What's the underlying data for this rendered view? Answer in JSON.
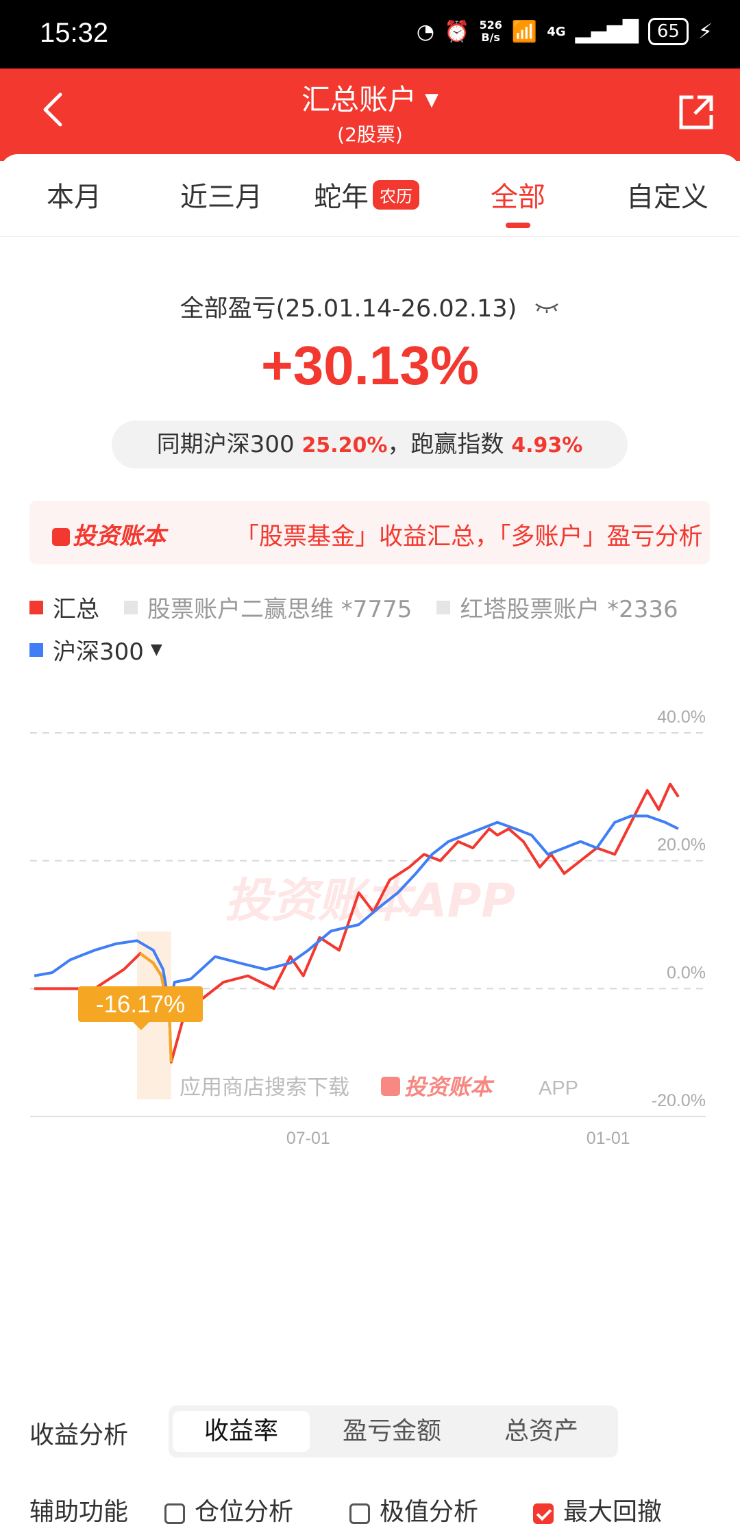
{
  "status": {
    "time": "15:32",
    "net_speed_top": "526",
    "net_speed_bottom": "B/s",
    "signal": "4G",
    "battery": "65"
  },
  "header": {
    "title": "汇总账户",
    "subtitle": "(2股票)"
  },
  "tabs": [
    {
      "label": "本月"
    },
    {
      "label": "近三月"
    },
    {
      "label": "蛇年",
      "badge": "农历"
    },
    {
      "label": "全部",
      "active": true
    },
    {
      "label": "自定义"
    }
  ],
  "summary": {
    "label": "全部盈亏(25.01.14-26.02.13)",
    "value": "+30.13%",
    "compare_prefix": "同期沪深300",
    "compare_index_value": "25.20%",
    "compare_mid": "，跑赢指数",
    "compare_excess": "4.93%"
  },
  "promo": {
    "logo": "投资账本",
    "text": "「股票基金」收益汇总，「多账户」盈亏分析"
  },
  "legend": {
    "summary": "汇总",
    "account1": "股票账户二赢思维 *7775",
    "account2": "红塔股票账户 *2336",
    "index": "沪深300",
    "index_caret": "▼"
  },
  "colors": {
    "brand": "#f2382f",
    "index": "#3f7ef5",
    "drawdown": "#f5a623"
  },
  "chart_data": {
    "type": "line",
    "x_ticks": [
      "07-01",
      "01-01"
    ],
    "y_ticks": [
      "40.0%",
      "20.0%",
      "0.0%",
      "-20.0%"
    ],
    "ylim": [
      -20,
      40
    ],
    "xlim": [
      "2025-01-14",
      "2026-02-13"
    ],
    "grid": true,
    "watermark": "投资账本APP",
    "footer_text": "应用商店搜索下载",
    "footer_logo": "投资账本",
    "footer_suffix": "APP",
    "max_drawdown_label": "-16.17%",
    "max_drawdown_period": [
      "2025-03-18",
      "2025-04-08"
    ],
    "series": [
      {
        "name": "汇总",
        "color": "#f2382f",
        "x": [
          "2025-01-14",
          "2025-02-01",
          "2025-02-20",
          "2025-03-10",
          "2025-03-20",
          "2025-03-28",
          "2025-04-02",
          "2025-04-07",
          "2025-04-08",
          "2025-04-15",
          "2025-04-25",
          "2025-05-10",
          "2025-05-25",
          "2025-06-10",
          "2025-06-20",
          "2025-06-28",
          "2025-07-08",
          "2025-07-20",
          "2025-08-01",
          "2025-08-10",
          "2025-08-20",
          "2025-09-01",
          "2025-09-10",
          "2025-09-20",
          "2025-10-01",
          "2025-10-10",
          "2025-10-20",
          "2025-10-25",
          "2025-11-01",
          "2025-11-10",
          "2025-11-20",
          "2025-11-27",
          "2025-12-05",
          "2025-12-15",
          "2025-12-25",
          "2026-01-05",
          "2026-01-15",
          "2026-01-25",
          "2026-02-01",
          "2026-02-08",
          "2026-02-13"
        ],
        "values": [
          0,
          0,
          0,
          3,
          5.5,
          4,
          2,
          -5,
          -11.5,
          -5,
          -2,
          1,
          2,
          0,
          5,
          2,
          8,
          6,
          15,
          12,
          17,
          19,
          21,
          20,
          23,
          22,
          25,
          24,
          25,
          23,
          19,
          21,
          18,
          20,
          22,
          21,
          26,
          31,
          28,
          32,
          30
        ]
      },
      {
        "name": "沪深300",
        "color": "#3f7ef5",
        "x": [
          "2025-01-14",
          "2025-01-25",
          "2025-02-05",
          "2025-02-20",
          "2025-03-05",
          "2025-03-18",
          "2025-03-28",
          "2025-04-03",
          "2025-04-07",
          "2025-04-10",
          "2025-04-20",
          "2025-05-05",
          "2025-05-20",
          "2025-06-05",
          "2025-06-20",
          "2025-07-01",
          "2025-07-15",
          "2025-08-01",
          "2025-08-15",
          "2025-08-25",
          "2025-09-05",
          "2025-09-15",
          "2025-09-25",
          "2025-10-05",
          "2025-10-15",
          "2025-10-25",
          "2025-11-05",
          "2025-11-15",
          "2025-11-25",
          "2025-12-05",
          "2025-12-15",
          "2025-12-25",
          "2026-01-05",
          "2026-01-15",
          "2026-01-25",
          "2026-02-05",
          "2026-02-13"
        ],
        "values": [
          2,
          2.5,
          4.5,
          6,
          7,
          7.5,
          6,
          3,
          -3,
          1,
          1.5,
          5,
          4,
          3,
          4,
          6,
          9,
          10,
          13,
          15,
          18,
          21,
          23,
          24,
          25,
          26,
          25,
          24,
          21,
          22,
          23,
          22,
          26,
          27,
          27,
          26,
          25
        ]
      }
    ]
  },
  "analysis": {
    "label": "收益分析",
    "options": [
      "收益率",
      "盈亏金额",
      "总资产"
    ],
    "active_index": 0
  },
  "tools": {
    "label": "辅助功能",
    "items": [
      {
        "label": "仓位分析",
        "checked": false
      },
      {
        "label": "极值分析",
        "checked": false
      },
      {
        "label": "最大回撤",
        "checked": true
      }
    ]
  }
}
